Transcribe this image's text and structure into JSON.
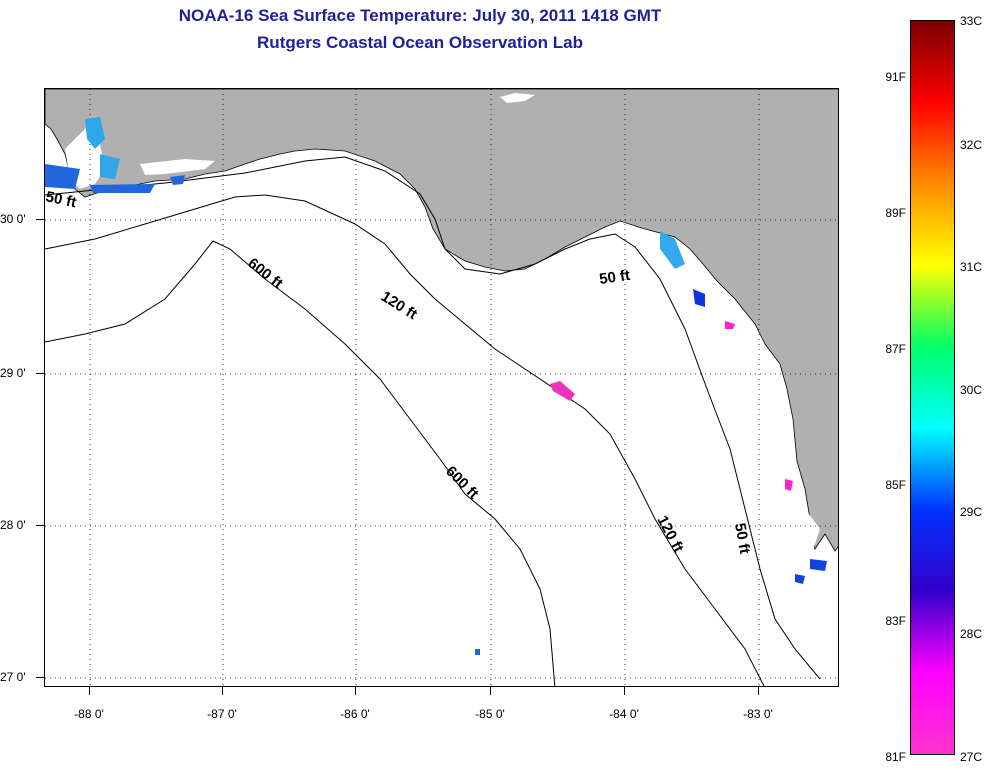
{
  "header": {
    "title": "NOAA-16 Sea Surface Temperature:  July 30, 2011 1418 GMT",
    "subtitle": "Rutgers Coastal Ocean Observation Lab"
  },
  "axes": {
    "lat_labels": [
      "30 0'",
      "29 0'",
      "28 0'",
      "27 0'"
    ],
    "lon_labels": [
      "-88 0'",
      "-87 0'",
      "-86 0'",
      "-85 0'",
      "-84 0'",
      "-83 0'"
    ]
  },
  "map": {
    "land_color": "#b0b0b0",
    "water_color": "#ffffff",
    "contours": [
      {
        "label": "50 ft",
        "kind": "50ft-west"
      },
      {
        "label": "50 ft",
        "kind": "50ft-east-a"
      },
      {
        "label": "50 ft",
        "kind": "50ft-east-b"
      },
      {
        "label": "120 ft",
        "kind": "120ft-a"
      },
      {
        "label": "120 ft",
        "kind": "120ft-b"
      },
      {
        "label": "600 ft",
        "kind": "600ft-a"
      },
      {
        "label": "600 ft",
        "kind": "600ft-b"
      }
    ]
  },
  "colorbar": {
    "fahrenheit_labels": [
      "91F",
      "89F",
      "87F",
      "85F",
      "83F",
      "81F"
    ],
    "celsius_labels": [
      "33C",
      "32C",
      "31C",
      "30C",
      "29C",
      "28C",
      "27C"
    ],
    "gradient_colors": [
      "#7a0000",
      "#ff0000",
      "#ff8c00",
      "#ffff00",
      "#00ff66",
      "#00ffff",
      "#0033ff",
      "#3300cc",
      "#ff00ff",
      "#ff33cc"
    ]
  }
}
